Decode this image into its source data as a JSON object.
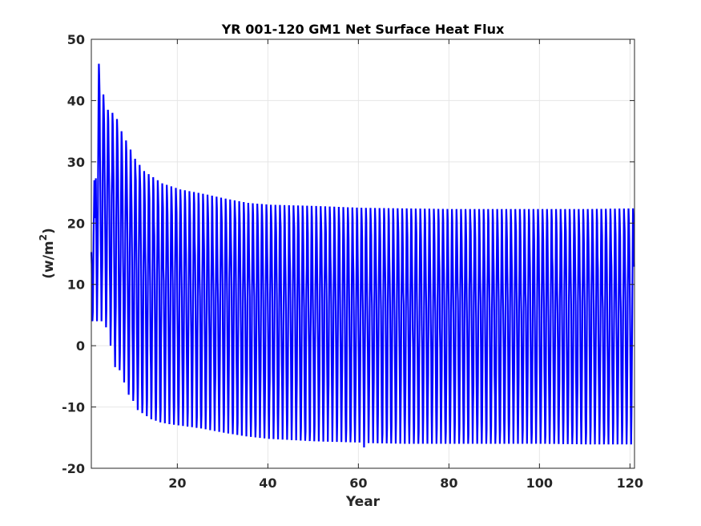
{
  "chart_data": {
    "type": "line",
    "title": "YR 001-120 GM1 Net Surface Heat Flux",
    "xlabel": "Year",
    "ylabel_main": "(w/m",
    "ylabel_sup": "2",
    "ylabel_close": ")",
    "xlim": [
      1,
      121
    ],
    "ylim": [
      -20,
      50
    ],
    "xticks": [
      20,
      40,
      60,
      80,
      100,
      120
    ],
    "yticks": [
      -20,
      -10,
      0,
      10,
      20,
      30,
      40,
      50
    ],
    "grid": true,
    "line_color": "#0000ff",
    "series": [
      {
        "samples_per_year": 12,
        "start_year": 1,
        "annual_max": [
          [
            1,
            27
          ],
          [
            2,
            46
          ],
          [
            3,
            41
          ],
          [
            4,
            38.5
          ],
          [
            5,
            38
          ],
          [
            6,
            37
          ],
          [
            7,
            35
          ],
          [
            8,
            33.5
          ],
          [
            9,
            32
          ],
          [
            10,
            30.5
          ],
          [
            11,
            29.5
          ],
          [
            12,
            28.5
          ],
          [
            13,
            28
          ],
          [
            14,
            27.5
          ],
          [
            15,
            27
          ],
          [
            16,
            26.5
          ],
          [
            18,
            26
          ],
          [
            20,
            25.5
          ],
          [
            25,
            24.8
          ],
          [
            30,
            24
          ],
          [
            35,
            23.3
          ],
          [
            40,
            23
          ],
          [
            50,
            22.8
          ],
          [
            60,
            22.5
          ],
          [
            70,
            22.4
          ],
          [
            80,
            22.3
          ],
          [
            90,
            22.3
          ],
          [
            100,
            22.3
          ],
          [
            110,
            22.3
          ],
          [
            120,
            22.4
          ]
        ],
        "annual_min": [
          [
            1,
            4
          ],
          [
            2,
            4
          ],
          [
            3,
            4
          ],
          [
            4,
            3
          ],
          [
            5,
            0
          ],
          [
            6,
            -3.5
          ],
          [
            7,
            -4
          ],
          [
            8,
            -6
          ],
          [
            9,
            -8
          ],
          [
            10,
            -9
          ],
          [
            11,
            -10.5
          ],
          [
            12,
            -11
          ],
          [
            13,
            -11.5
          ],
          [
            14,
            -12
          ],
          [
            16,
            -12.5
          ],
          [
            18,
            -12.8
          ],
          [
            20,
            -13
          ],
          [
            25,
            -13.5
          ],
          [
            30,
            -14.2
          ],
          [
            35,
            -14.8
          ],
          [
            40,
            -15.2
          ],
          [
            50,
            -15.6
          ],
          [
            60,
            -15.8
          ],
          [
            61,
            -16.6
          ],
          [
            62,
            -15.9
          ],
          [
            70,
            -16
          ],
          [
            80,
            -16
          ],
          [
            90,
            -16
          ],
          [
            100,
            -16
          ],
          [
            110,
            -16.1
          ],
          [
            120,
            -16.1
          ]
        ]
      }
    ]
  }
}
